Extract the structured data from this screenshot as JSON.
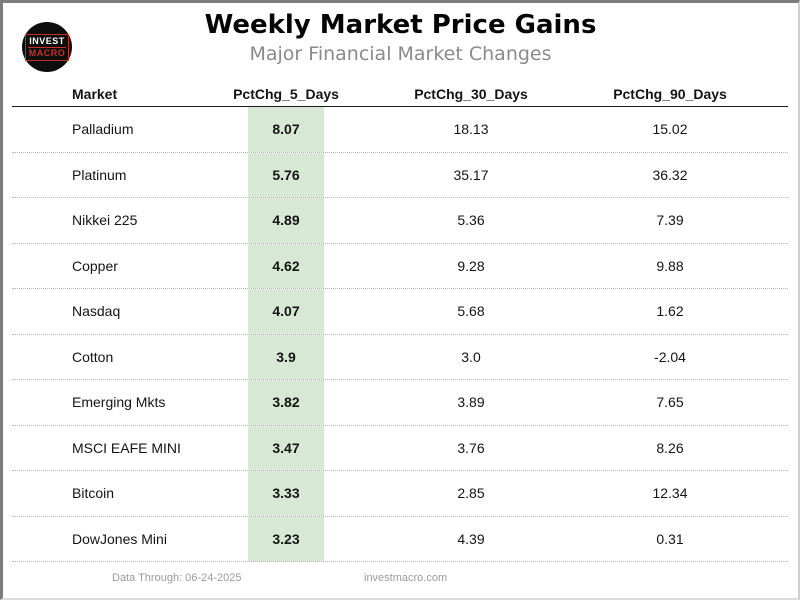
{
  "page": {
    "title": "Weekly Market Price Gains",
    "subtitle": "Major Financial Market Changes",
    "logo": {
      "line1": "INVEST",
      "line2": "MACRO"
    },
    "footer": {
      "data_through": "Data Through: 06-24-2025",
      "website": "investmacro.com"
    }
  },
  "colors": {
    "highlight_green": "#d7e8d4",
    "logo_red": "#c8312b",
    "subtitle_gray": "#8a8a8a",
    "border_gray": "#7d7d7d"
  },
  "chart_data": {
    "type": "table",
    "title": "Weekly Market Price Gains",
    "subtitle": "Major Financial Market Changes",
    "columns": [
      "Market",
      "PctChg_5_Days",
      "PctChg_30_Days",
      "PctChg_90_Days"
    ],
    "highlighted_column": "PctChg_5_Days",
    "rows": [
      {
        "market": "Palladium",
        "pctchg_5_days": "8.07",
        "pctchg_30_days": "18.13",
        "pctchg_90_days": "15.02"
      },
      {
        "market": "Platinum",
        "pctchg_5_days": "5.76",
        "pctchg_30_days": "35.17",
        "pctchg_90_days": "36.32"
      },
      {
        "market": "Nikkei 225",
        "pctchg_5_days": "4.89",
        "pctchg_30_days": "5.36",
        "pctchg_90_days": "7.39"
      },
      {
        "market": "Copper",
        "pctchg_5_days": "4.62",
        "pctchg_30_days": "9.28",
        "pctchg_90_days": "9.88"
      },
      {
        "market": "Nasdaq",
        "pctchg_5_days": "4.07",
        "pctchg_30_days": "5.68",
        "pctchg_90_days": "1.62"
      },
      {
        "market": "Cotton",
        "pctchg_5_days": "3.9",
        "pctchg_30_days": "3.0",
        "pctchg_90_days": "-2.04"
      },
      {
        "market": "Emerging Mkts",
        "pctchg_5_days": "3.82",
        "pctchg_30_days": "3.89",
        "pctchg_90_days": "7.65"
      },
      {
        "market": "MSCI EAFE MINI",
        "pctchg_5_days": "3.47",
        "pctchg_30_days": "3.76",
        "pctchg_90_days": "8.26"
      },
      {
        "market": "Bitcoin",
        "pctchg_5_days": "3.33",
        "pctchg_30_days": "2.85",
        "pctchg_90_days": "12.34"
      },
      {
        "market": "DowJones Mini",
        "pctchg_5_days": "3.23",
        "pctchg_30_days": "4.39",
        "pctchg_90_days": "0.31"
      }
    ]
  }
}
